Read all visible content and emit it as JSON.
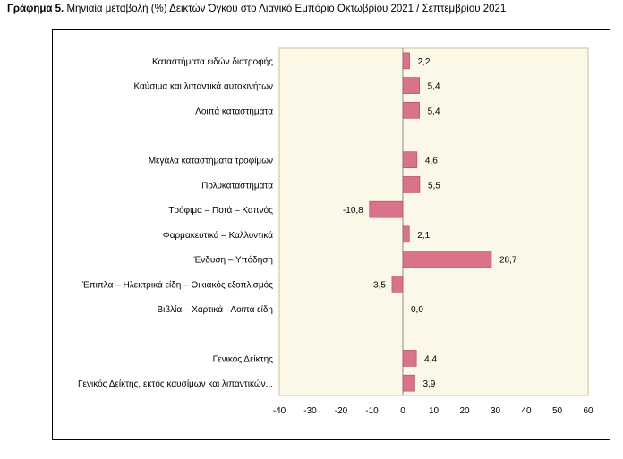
{
  "title": {
    "bold": "Γράφημα 5.",
    "text": "Μηνιαία μεταβολή (%) Δεικτών Όγκου στο Λιανικό Εμπόριο Οκτωβρίου 2021 / Σεπτεμβρίου 2021"
  },
  "colors": {
    "bar": "#d9738a",
    "bar_stroke": "#a8485f",
    "plot_bg": "#fbf8e8",
    "plot_border": "#c9c09a"
  },
  "chart_data": {
    "type": "bar",
    "orientation": "horizontal",
    "title": "Μηνιαία μεταβολή (%) Δεικτών Όγκου στο Λιανικό Εμπόριο Οκτωβρίου 2021 / Σεπτεμβρίου 2021",
    "xlim": [
      -40,
      60
    ],
    "xticks": [
      -40,
      -30,
      -20,
      -10,
      0,
      10,
      20,
      30,
      40,
      50,
      60
    ],
    "grid": false,
    "legend": "none",
    "categories": [
      "Καταστήματα ειδών διατροφής",
      "Καύσιμα και λιπαντικά αυτοκινήτων",
      "Λοιπά καταστήματα",
      "",
      "Μεγάλα καταστήματα τροφίμων",
      "Πολυκαταστήματα",
      "Τρόφιμα – Ποτά – Καπνός",
      "Φαρμακευτικά – Καλλυντικά",
      "Ένδυση – Υπόδηση",
      "Έπιπλα – Ηλεκτρικά είδη – Οικιακός εξοπλισμός",
      "Βιβλία – Χαρτικά –Λοιπά είδη",
      "",
      "Γενικός Δείκτης",
      "Γενικός Δείκτης, εκτός καυσίμων και λιπαντικών..."
    ],
    "values": [
      2.2,
      5.4,
      5.4,
      null,
      4.6,
      5.5,
      -10.8,
      2.1,
      28.7,
      -3.5,
      0.0,
      null,
      4.4,
      3.9
    ],
    "value_labels": [
      "2,2",
      "5,4",
      "5,4",
      "",
      "4,6",
      "5,5",
      "-10,8",
      "2,1",
      "28,7",
      "-3,5",
      "0,0",
      "",
      "4,4",
      "3,9"
    ]
  }
}
